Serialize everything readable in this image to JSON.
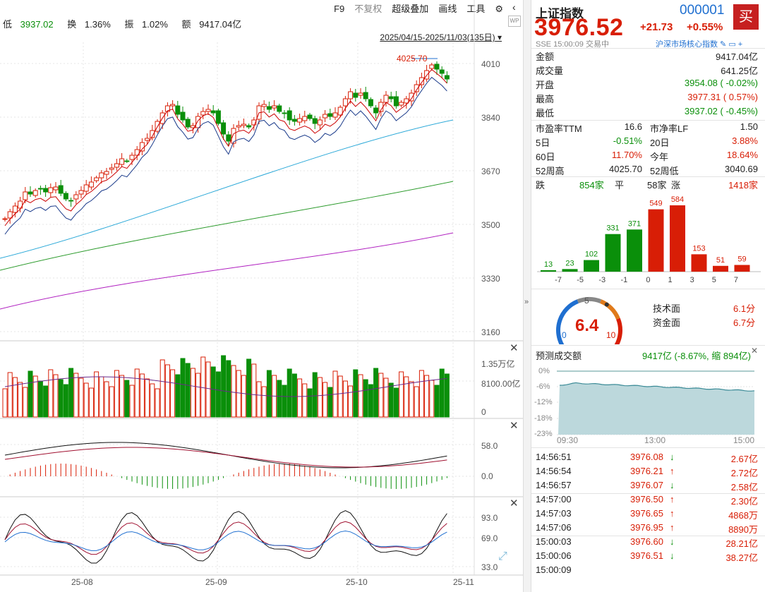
{
  "header": {
    "low_label": "低",
    "low_value": "3937.02",
    "turnover_label": "换",
    "turnover_value": "1.36%",
    "amplitude_label": "振",
    "amplitude_value": "1.02%",
    "amount_label": "额",
    "amount_value": "9417.04亿"
  },
  "toolbar": {
    "f9": "F9",
    "no_adjust": "不复权",
    "overlay": "超级叠加",
    "draw": "画线",
    "tools": "工具",
    "gear_icon": "gear-icon",
    "collapse_icon": "chevron-left-icon"
  },
  "date_range": "2025/04/15-2025/11/03(135日)",
  "price_axis": [
    "4010",
    "3840",
    "3670",
    "3500",
    "3330",
    "3160"
  ],
  "high_marker": "4025.70",
  "volume_axis": [
    "1.35万亿",
    "8100.00亿",
    "0"
  ],
  "macd_axis": [
    "58.0",
    "0.0"
  ],
  "kdj_axis": [
    "93.0",
    "69.0",
    "33.0"
  ],
  "x_axis": [
    "25-08",
    "25-09",
    "25-10",
    "25-11"
  ],
  "quote": {
    "name": "上证指数",
    "code": "000001",
    "price": "3976.52",
    "change": "+21.73",
    "change_pct": "+0.55%",
    "exchange": "SSE",
    "time": "15:00:09",
    "status": "交易中",
    "index_link": "沪深市场核心指数",
    "buy_label": "买"
  },
  "stats": [
    {
      "label": "金额",
      "value": "9417.04亿",
      "color": "#222"
    },
    {
      "label": "成交量",
      "value": "641.25亿",
      "color": "#222"
    },
    {
      "label": "开盘",
      "value": "3954.08 ( -0.02%)",
      "color": "#0a8f0a"
    },
    {
      "label": "最高",
      "value": "3977.31 ( 0.57%)",
      "color": "#d81e06"
    },
    {
      "label": "最低",
      "value": "3937.02 ( -0.45%)",
      "color": "#0a8f0a"
    }
  ],
  "stats2": [
    {
      "l1": "市盈率TTM",
      "v1": "16.6",
      "c1": "#222",
      "l2": "市净率LF",
      "v2": "1.50",
      "c2": "#222"
    },
    {
      "l1": "5日",
      "v1": "-0.51%",
      "c1": "#0a8f0a",
      "l2": "20日",
      "v2": "3.88%",
      "c2": "#d81e06"
    },
    {
      "l1": "60日",
      "v1": "11.70%",
      "c1": "#d81e06",
      "l2": "今年",
      "v2": "18.64%",
      "c2": "#d81e06"
    },
    {
      "l1": "52周高",
      "v1": "4025.70",
      "c1": "#222",
      "l2": "52周低",
      "v2": "3040.69",
      "c2": "#222"
    }
  ],
  "breadth": {
    "down_label": "跌",
    "down": "854家",
    "flat_label": "平",
    "flat": "58家",
    "up_label": "涨",
    "up": "1418家"
  },
  "distribution": {
    "values": [
      13,
      23,
      102,
      331,
      371,
      549,
      584,
      153,
      51,
      59
    ],
    "colors": [
      "#0a8f0a",
      "#0a8f0a",
      "#0a8f0a",
      "#0a8f0a",
      "#0a8f0a",
      "#d81e06",
      "#d81e06",
      "#d81e06",
      "#d81e06",
      "#d81e06"
    ],
    "ticks": [
      "-7",
      "-5",
      "-3",
      "-1",
      "0",
      "1",
      "3",
      "5",
      "7"
    ]
  },
  "gauge": {
    "score": "6.4",
    "min": "0",
    "mid": "5",
    "max": "10",
    "tech_label": "技术面",
    "tech": "6.1分",
    "fund_label": "资金面",
    "fund": "6.7分",
    "score_value": 6.4
  },
  "forecast": {
    "label": "预测成交额",
    "value": "9417亿 (-8.67%, 缩 894亿)",
    "yticks": [
      "0%",
      "-6%",
      "-12%",
      "-18%",
      "-23%"
    ],
    "xticks": [
      "09:30",
      "13:00",
      "15:00"
    ]
  },
  "ticks": [
    {
      "time": "14:56:51",
      "price": "3976.08",
      "dir": "down",
      "vol": "2.67亿"
    },
    {
      "time": "14:56:54",
      "price": "3976.21",
      "dir": "up",
      "vol": "2.72亿"
    },
    {
      "time": "14:56:57",
      "price": "3976.07",
      "dir": "down",
      "vol": "2.58亿"
    },
    {
      "time": "14:57:00",
      "price": "3976.50",
      "dir": "up",
      "vol": "2.30亿"
    },
    {
      "time": "14:57:03",
      "price": "3976.65",
      "dir": "up",
      "vol": "4868万"
    },
    {
      "time": "14:57:06",
      "price": "3976.95",
      "dir": "up",
      "vol": "8890万"
    },
    {
      "time": "15:00:03",
      "price": "3976.60",
      "dir": "down",
      "vol": "28.21亿"
    },
    {
      "time": "15:00:06",
      "price": "3976.51",
      "dir": "down",
      "vol": "38.27亿"
    },
    {
      "time": "15:00:09",
      "price": "",
      "dir": "",
      "vol": ""
    }
  ]
}
